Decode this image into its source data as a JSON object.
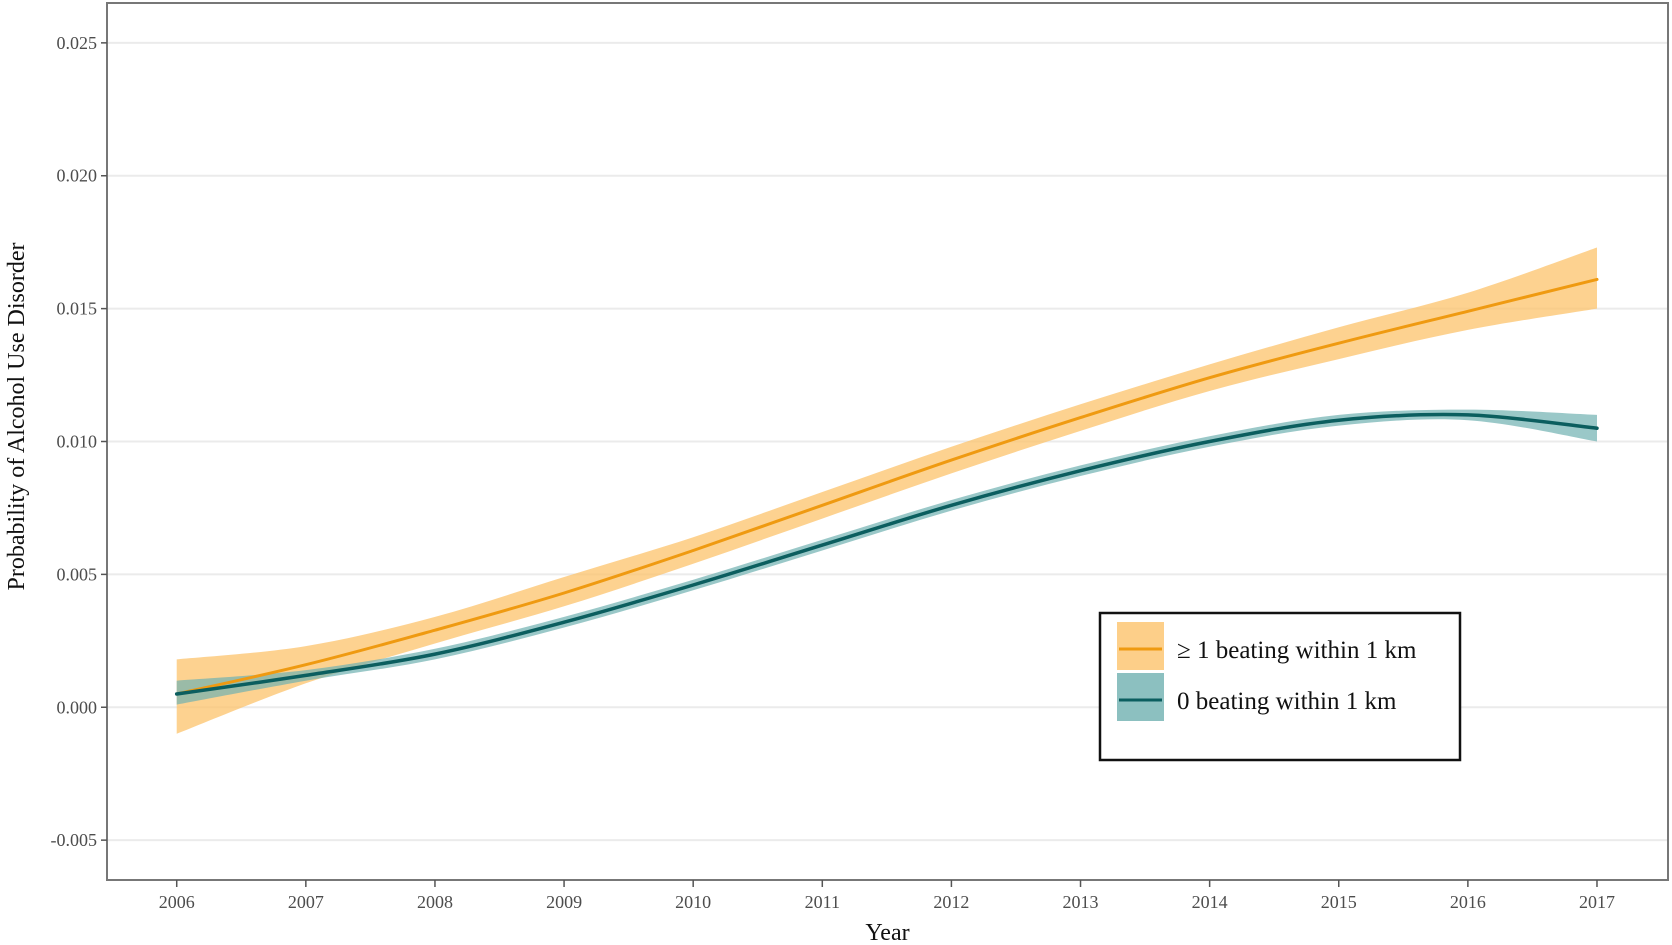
{
  "chart_data": {
    "type": "line",
    "title": "",
    "xlabel": "Year",
    "ylabel": "Probability of Alcohol Use Disorder",
    "x_ticks": [
      "2006",
      "2007",
      "2008",
      "2009",
      "2010",
      "2011",
      "2012",
      "2013",
      "2014",
      "2015",
      "2016",
      "2017"
    ],
    "y_ticks": [
      "-0.005",
      "0.000",
      "0.005",
      "0.010",
      "0.015",
      "0.020",
      "0.025"
    ],
    "xlim": [
      2005.46,
      2017.55
    ],
    "ylim": [
      -0.0065,
      0.0265
    ],
    "grid": "horizontal",
    "legend_position": "bottom-right",
    "series": [
      {
        "name": "≥ 1 beating within 1 km",
        "color": "#ef9a11",
        "band_color": "#fcc36b",
        "x": [
          2006,
          2007,
          2008,
          2009,
          2010,
          2011,
          2012,
          2013,
          2014,
          2015,
          2016,
          2017
        ],
        "y": [
          0.0005,
          0.0016,
          0.0029,
          0.0043,
          0.0059,
          0.0076,
          0.0093,
          0.0109,
          0.0124,
          0.0137,
          0.0149,
          0.0161
        ],
        "lower": [
          -0.001,
          0.0009,
          0.0024,
          0.0038,
          0.0054,
          0.0071,
          0.0088,
          0.0104,
          0.0119,
          0.0131,
          0.0142,
          0.015
        ],
        "upper": [
          0.0018,
          0.0023,
          0.0034,
          0.0049,
          0.0064,
          0.0081,
          0.0098,
          0.0114,
          0.0129,
          0.0143,
          0.0156,
          0.0173
        ]
      },
      {
        "name": "0 beating within 1 km",
        "color": "#0b5e5f",
        "band_color": "#6fb0b0",
        "x": [
          2006,
          2007,
          2008,
          2009,
          2010,
          2011,
          2012,
          2013,
          2014,
          2015,
          2016,
          2017
        ],
        "y": [
          0.0005,
          0.0012,
          0.002,
          0.0032,
          0.0046,
          0.0061,
          0.0076,
          0.0089,
          0.01,
          0.0108,
          0.011,
          0.0105
        ],
        "lower": [
          0.0001,
          0.001,
          0.0018,
          0.003,
          0.0044,
          0.0059,
          0.0074,
          0.0087,
          0.0098,
          0.0106,
          0.0108,
          0.01
        ],
        "upper": [
          0.001,
          0.0014,
          0.0022,
          0.0034,
          0.0048,
          0.0063,
          0.0078,
          0.0091,
          0.0102,
          0.011,
          0.0112,
          0.011
        ]
      }
    ]
  }
}
